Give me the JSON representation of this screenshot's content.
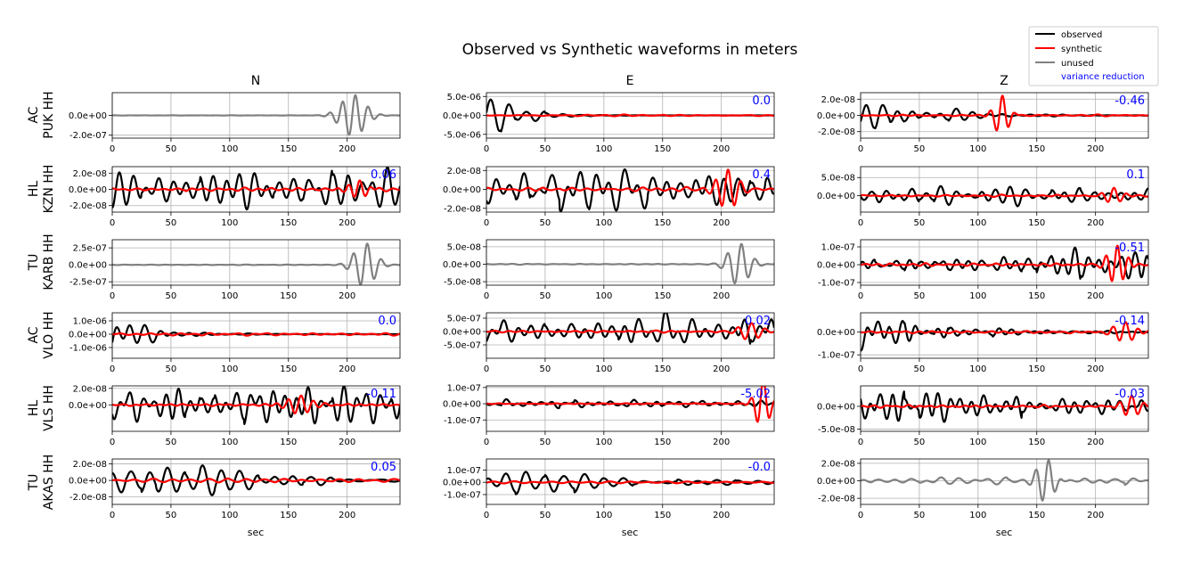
{
  "title": "Observed vs Synthetic waveforms in meters",
  "columns": [
    "N",
    "E",
    "Z"
  ],
  "rows": [
    {
      "network": "AC",
      "station": "PUK HH"
    },
    {
      "network": "HL",
      "station": "KZN HH"
    },
    {
      "network": "TU",
      "station": "KARB HH"
    },
    {
      "network": "AC",
      "station": "VLO HH"
    },
    {
      "network": "HL",
      "station": "VLS HH"
    },
    {
      "network": "TU",
      "station": "AKAS HH"
    }
  ],
  "xlabel": "sec",
  "legend": {
    "entries": [
      {
        "label": "observed",
        "color": "#000000"
      },
      {
        "label": "synthetic",
        "color": "#ff0000"
      },
      {
        "label": "unused",
        "color": "#808080"
      }
    ],
    "extra_label": "variance reduction",
    "extra_color": "#0000ff",
    "placement": "top-right"
  },
  "colors": {
    "observed": "#000000",
    "synthetic": "#ff0000",
    "unused": "#808080",
    "variance_reduction": "#0000ff",
    "grid": "#b0b0b0"
  },
  "chart_data": {
    "type": "line",
    "title": "Observed vs Synthetic waveforms in meters",
    "xlabel": "sec",
    "xlim": [
      0,
      245
    ],
    "xticks": [
      0,
      50,
      100,
      150,
      200
    ],
    "grid": true,
    "panels": [
      {
        "row": 0,
        "col": 0,
        "unused": true,
        "vr": "",
        "ylim": [
          -2.3e-07,
          2.3e-07
        ],
        "yticks": [
          {
            "v": 0,
            "label": "0.0e+00"
          },
          {
            "v": -2e-07,
            "label": "-2.0e-07"
          }
        ],
        "quiet_amp": 1.5e-09,
        "event_amp": 2.1e-07,
        "event_center": 205,
        "event_width": 14,
        "period": 11
      },
      {
        "row": 0,
        "col": 1,
        "unused": false,
        "vr": "0.0",
        "ylim": [
          -6e-06,
          6e-06
        ],
        "yticks": [
          {
            "v": 5e-06,
            "label": "5.0e-06"
          },
          {
            "v": 0,
            "label": "0.0e+00"
          },
          {
            "v": -5e-06,
            "label": "-5.0e-06"
          }
        ],
        "obs_amp": 6e-06,
        "obs_decay": 0.045,
        "syn_amp": 2e-07,
        "period": 14,
        "syn_event": null
      },
      {
        "row": 0,
        "col": 2,
        "unused": false,
        "vr": "-0.46",
        "ylim": [
          -2.8e-08,
          2.8e-08
        ],
        "yticks": [
          {
            "v": 2e-08,
            "label": "2.0e-08"
          },
          {
            "v": 0,
            "label": "0.0e+00"
          },
          {
            "v": -2e-08,
            "label": "-2.0e-08"
          }
        ],
        "obs_amp": 2.6e-08,
        "obs_decay": 0.02,
        "syn_amp": 1e-09,
        "period": 12,
        "syn_event": {
          "center": 120,
          "width": 8,
          "amp": 2.5e-08
        }
      },
      {
        "row": 1,
        "col": 0,
        "unused": false,
        "vr": "0.06",
        "ylim": [
          -2.8e-08,
          2.8e-08
        ],
        "yticks": [
          {
            "v": 2e-08,
            "label": "2.0e-08"
          },
          {
            "v": 0,
            "label": "0.0e+00"
          },
          {
            "v": -2e-08,
            "label": "-2.0e-08"
          }
        ],
        "obs_amp": 2.5e-08,
        "obs_decay": 0.0,
        "syn_amp": 2.5e-09,
        "period": 11,
        "syn_event": {
          "center": 210,
          "width": 10,
          "amp": 1.2e-08
        }
      },
      {
        "row": 1,
        "col": 1,
        "unused": false,
        "vr": "0.4",
        "ylim": [
          -2.4e-08,
          2.4e-08
        ],
        "yticks": [
          {
            "v": 2e-08,
            "label": "2.0e-08"
          },
          {
            "v": 0,
            "label": "0.0e+00"
          },
          {
            "v": -2e-08,
            "label": "-2.0e-08"
          }
        ],
        "obs_amp": 2.1e-08,
        "obs_decay": 0.0,
        "syn_amp": 2e-09,
        "period": 12,
        "syn_event": {
          "center": 205,
          "width": 12,
          "amp": 2e-08
        }
      },
      {
        "row": 1,
        "col": 2,
        "unused": false,
        "vr": "0.1",
        "ylim": [
          -4.5e-08,
          8e-08
        ],
        "yticks": [
          {
            "v": 5e-08,
            "label": "5.0e-08"
          },
          {
            "v": 0,
            "label": "0.0e+00"
          }
        ],
        "obs_amp": 2.5e-08,
        "obs_decay": 0.0,
        "syn_amp": 3e-09,
        "period": 12,
        "syn_event": {
          "center": 215,
          "width": 10,
          "amp": 2e-08
        }
      },
      {
        "row": 2,
        "col": 0,
        "unused": true,
        "vr": "",
        "ylim": [
          -3e-07,
          3.7e-07
        ],
        "yticks": [
          {
            "v": 2.5e-07,
            "label": "2.5e-07"
          },
          {
            "v": 0,
            "label": "0.0e+00"
          },
          {
            "v": -2.5e-07,
            "label": "-2.5e-07"
          }
        ],
        "quiet_amp": 5e-09,
        "event_amp": 3.2e-07,
        "event_center": 215,
        "event_width": 12,
        "period": 12
      },
      {
        "row": 2,
        "col": 1,
        "unused": true,
        "vr": "",
        "ylim": [
          -6e-08,
          7e-08
        ],
        "yticks": [
          {
            "v": 5e-08,
            "label": "5.0e-08"
          },
          {
            "v": 0,
            "label": "0.0e+00"
          },
          {
            "v": -5e-08,
            "label": "-5.0e-08"
          }
        ],
        "quiet_amp": 1.5e-09,
        "event_amp": 6e-08,
        "event_center": 215,
        "event_width": 12,
        "period": 12
      },
      {
        "row": 2,
        "col": 2,
        "unused": false,
        "vr": "-0.51",
        "ylim": [
          -1.15e-07,
          1.4e-07
        ],
        "yticks": [
          {
            "v": 1e-07,
            "label": "1.0e-07"
          },
          {
            "v": 0,
            "label": "0.0e+00"
          },
          {
            "v": -1e-07,
            "label": "-1.0e-07"
          }
        ],
        "obs_amp": 3e-08,
        "obs_decay": -0.006,
        "syn_amp": 8e-09,
        "period": 11,
        "syn_event": {
          "center": 218,
          "width": 10,
          "amp": 1.1e-07
        }
      },
      {
        "row": 3,
        "col": 0,
        "unused": false,
        "vr": "0.0",
        "ylim": [
          -1.8e-06,
          1.6e-06
        ],
        "yticks": [
          {
            "v": 1e-06,
            "label": "1.0e-06"
          },
          {
            "v": 0,
            "label": "0.0e+00"
          },
          {
            "v": -1e-06,
            "label": "-1.0e-06"
          }
        ],
        "obs_amp": 1.5e-06,
        "obs_decay": 0.03,
        "syn_amp": 1e-07,
        "period": 14,
        "syn_event": null
      },
      {
        "row": 3,
        "col": 1,
        "unused": false,
        "vr": "0.02",
        "ylim": [
          -1e-06,
          7e-07
        ],
        "yticks": [
          {
            "v": 5e-07,
            "label": "5.0e-07"
          },
          {
            "v": 0,
            "label": "0.0e+00"
          },
          {
            "v": -5e-07,
            "label": "-5.0e-07"
          }
        ],
        "obs_amp": 6e-07,
        "obs_decay": 0.0,
        "syn_amp": 4e-08,
        "period": 13,
        "syn_event": {
          "center": 225,
          "width": 12,
          "amp": 3e-07
        }
      },
      {
        "row": 3,
        "col": 2,
        "unused": false,
        "vr": "-0.14",
        "ylim": [
          -1.15e-07,
          8.5e-08
        ],
        "yticks": [
          {
            "v": 0,
            "label": "0.0e+00"
          },
          {
            "v": -1e-07,
            "label": "-1.0e-07"
          }
        ],
        "obs_amp": 7e-08,
        "obs_decay": 0.012,
        "syn_amp": 5e-09,
        "period": 12,
        "syn_event": {
          "center": 225,
          "width": 12,
          "amp": 4e-08
        }
      },
      {
        "row": 4,
        "col": 0,
        "unused": false,
        "vr": "-0.11",
        "ylim": [
          -3.2e-08,
          2.3e-08
        ],
        "yticks": [
          {
            "v": 2e-08,
            "label": "2.0e-08"
          },
          {
            "v": 0,
            "label": "0.0e+00"
          }
        ],
        "obs_amp": 2.2e-08,
        "obs_decay": 0.0,
        "syn_amp": 1.5e-09,
        "period": 12,
        "syn_event": {
          "center": 160,
          "width": 14,
          "amp": 1e-08
        }
      },
      {
        "row": 4,
        "col": 1,
        "unused": false,
        "vr": "-5.02",
        "ylim": [
          -1.7e-07,
          1.1e-07
        ],
        "yticks": [
          {
            "v": 1e-07,
            "label": "1.0e-07"
          },
          {
            "v": 0,
            "label": "0.0e+00"
          },
          {
            "v": -1e-07,
            "label": "-1.0e-07"
          }
        ],
        "obs_amp": 2e-08,
        "obs_decay": 0.0,
        "syn_amp": 3e-09,
        "period": 12,
        "syn_event": {
          "center": 235,
          "width": 8,
          "amp": 1.5e-07
        }
      },
      {
        "row": 4,
        "col": 2,
        "unused": false,
        "vr": "-0.03",
        "ylim": [
          -5.5e-08,
          4.5e-08
        ],
        "yticks": [
          {
            "v": 0,
            "label": "0.0e+00"
          },
          {
            "v": -5e-08,
            "label": "-5.0e-08"
          }
        ],
        "obs_amp": 4e-08,
        "obs_decay": 0.004,
        "syn_amp": 3e-09,
        "period": 12,
        "syn_event": {
          "center": 230,
          "width": 10,
          "amp": 2.5e-08
        }
      },
      {
        "row": 5,
        "col": 0,
        "unused": false,
        "vr": "0.05",
        "ylim": [
          -2.9e-08,
          2.6e-08
        ],
        "yticks": [
          {
            "v": 2e-08,
            "label": "2.0e-08"
          },
          {
            "v": 0,
            "label": "0.0e+00"
          },
          {
            "v": -2e-08,
            "label": "-2.0e-08"
          }
        ],
        "obs_amp": 2.4e-08,
        "obs_decay": 0.006,
        "syn_amp": 2.5e-09,
        "period": 12,
        "syn_event": null
      },
      {
        "row": 5,
        "col": 1,
        "unused": false,
        "vr": "-0.0",
        "ylim": [
          -1.8e-07,
          1.9e-07
        ],
        "yticks": [
          {
            "v": 1e-07,
            "label": "1.0e-07"
          },
          {
            "v": 0,
            "label": "0.0e+00"
          },
          {
            "v": -1e-07,
            "label": "-1.0e-07"
          }
        ],
        "obs_amp": 1.7e-07,
        "obs_decay": 0.01,
        "syn_amp": 1e-08,
        "period": 13,
        "syn_event": null
      },
      {
        "row": 5,
        "col": 2,
        "unused": true,
        "vr": "",
        "ylim": [
          -2.7e-08,
          2.5e-08
        ],
        "yticks": [
          {
            "v": 2e-08,
            "label": "2.0e-08"
          },
          {
            "v": 0,
            "label": "0.0e+00"
          },
          {
            "v": -2e-08,
            "label": "-2.0e-08"
          }
        ],
        "quiet_amp": 4e-09,
        "event_amp": 2.4e-08,
        "event_center": 158,
        "event_width": 10,
        "period": 11
      }
    ]
  }
}
